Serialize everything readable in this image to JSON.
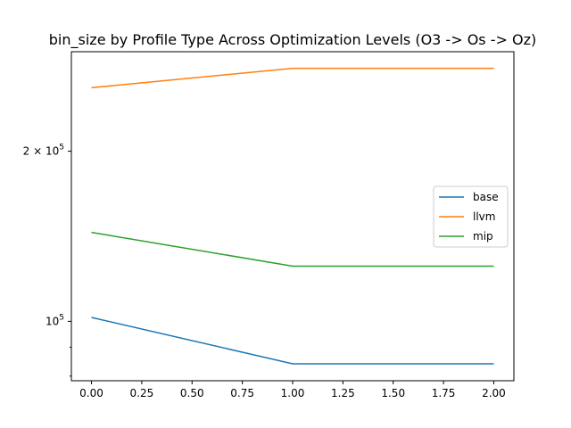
{
  "chart_data": {
    "type": "line",
    "title": "bin_size by Profile Type Across Optimization Levels (O3 -> Os -> Oz)",
    "xlabel": "",
    "ylabel": "",
    "x": [
      0,
      1,
      2
    ],
    "x_ticks": [
      "0.00",
      "0.25",
      "0.50",
      "0.75",
      "1.00",
      "1.25",
      "1.50",
      "1.75",
      "2.00"
    ],
    "xlim": [
      -0.1,
      2.1
    ],
    "y_scale": "log",
    "ylim": [
      78500,
      300000
    ],
    "y_major_ticks": [
      {
        "value": 100000,
        "base": "10",
        "exp": "5",
        "coef": ""
      },
      {
        "value": 200000,
        "base": "10",
        "exp": "5",
        "coef": "2 × "
      }
    ],
    "y_minor_ticks": [
      90000,
      80000
    ],
    "series": [
      {
        "name": "base",
        "color": "#1f77b4",
        "values": [
          101600,
          84100,
          84100
        ]
      },
      {
        "name": "llvm",
        "color": "#ff7f0e",
        "values": [
          259000,
          280400,
          280400
        ]
      },
      {
        "name": "mip",
        "color": "#2ca02c",
        "values": [
          143700,
          125200,
          125200
        ]
      }
    ],
    "legend_position": "center-right",
    "grid": false
  }
}
